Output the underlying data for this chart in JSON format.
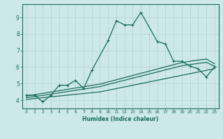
{
  "title": "",
  "xlabel": "Humidex (Indice chaleur)",
  "background_color": "#cce8e8",
  "grid_color": "#b8d4d4",
  "line_color": "#1a6b5a",
  "x_data": [
    0,
    1,
    2,
    3,
    4,
    5,
    6,
    7,
    8,
    9,
    10,
    11,
    12,
    13,
    14,
    15,
    16,
    17,
    18,
    19,
    20,
    21,
    22,
    23
  ],
  "y_main": [
    4.3,
    4.3,
    3.9,
    4.3,
    4.9,
    4.9,
    5.2,
    4.7,
    5.8,
    7.6,
    8.8,
    8.55,
    8.55,
    9.3,
    7.55,
    7.4,
    6.35,
    6.35,
    6.05,
    5.9,
    5.4,
    6.0
  ],
  "y_main_x": [
    0,
    1,
    2,
    3,
    4,
    5,
    6,
    7,
    8,
    10,
    11,
    12,
    13,
    14,
    16,
    17,
    18,
    19,
    20,
    21,
    22,
    23
  ],
  "y_line1": [
    4.05,
    4.1,
    4.15,
    4.2,
    4.25,
    4.3,
    4.35,
    4.4,
    4.45,
    4.5,
    4.6,
    4.7,
    4.8,
    4.9,
    5.0,
    5.1,
    5.2,
    5.3,
    5.4,
    5.5,
    5.6,
    5.7,
    5.8,
    5.9
  ],
  "y_line2": [
    4.15,
    4.22,
    4.29,
    4.36,
    4.44,
    4.52,
    4.59,
    4.67,
    4.74,
    4.82,
    4.95,
    5.08,
    5.2,
    5.33,
    5.45,
    5.58,
    5.7,
    5.83,
    5.95,
    6.08,
    6.15,
    6.22,
    6.28,
    6.05
  ],
  "y_line3": [
    4.25,
    4.33,
    4.41,
    4.49,
    4.57,
    4.65,
    4.73,
    4.81,
    4.89,
    4.97,
    5.1,
    5.23,
    5.36,
    5.49,
    5.62,
    5.75,
    5.88,
    6.01,
    6.14,
    6.27,
    6.35,
    6.42,
    6.48,
    6.2
  ],
  "ylim": [
    3.5,
    9.8
  ],
  "xlim": [
    -0.5,
    23.5
  ],
  "yticks": [
    4,
    5,
    6,
    7,
    8,
    9
  ],
  "xticks": [
    0,
    1,
    2,
    3,
    4,
    5,
    6,
    7,
    8,
    9,
    10,
    11,
    12,
    13,
    14,
    15,
    16,
    17,
    18,
    19,
    20,
    21,
    22,
    23
  ]
}
